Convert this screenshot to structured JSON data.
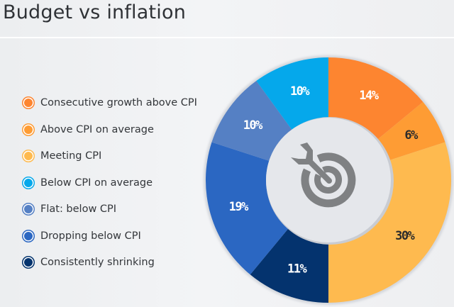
{
  "chart_data": {
    "type": "pie",
    "subtype": "donut",
    "title": "Budget vs inflation",
    "legend_position": "left",
    "center_icon": "target-arrow-icon",
    "categories": [
      "Consecutive growth above CPI",
      "Above CPI on average",
      "Meeting CPI",
      "Below CPI on average",
      "Flat: below CPI",
      "Dropping below CPI",
      "Consistently shrinking"
    ],
    "slices": [
      {
        "category": "Consecutive growth above CPI",
        "value": 14,
        "label": "14%",
        "color": "#fd8530",
        "label_color": "#ffffff"
      },
      {
        "category": "Above CPI on average",
        "value": 6,
        "label": "6%",
        "color": "#fe9c34",
        "label_color": "#2b2b2b"
      },
      {
        "category": "Meeting CPI",
        "value": 30,
        "label": "30%",
        "color": "#feba4f",
        "label_color": "#2b2b2b"
      },
      {
        "category": "Consistently shrinking",
        "value": 11,
        "label": "11%",
        "color": "#04336e",
        "label_color": "#ffffff"
      },
      {
        "category": "Dropping below CPI",
        "value": 19,
        "label": "19%",
        "color": "#2b67c2",
        "label_color": "#ffffff"
      },
      {
        "category": "Flat: below CPI",
        "value": 10,
        "label": "10%",
        "color": "#5580c4",
        "label_color": "#ffffff"
      },
      {
        "category": "Below CPI on average",
        "value": 10,
        "label": "10%",
        "color": "#05a8eb",
        "label_color": "#ffffff"
      }
    ],
    "unit": "%"
  },
  "legend": [
    {
      "label": "Consecutive growth above CPI",
      "color": "#fd8530"
    },
    {
      "label": "Above CPI on average",
      "color": "#fe9c34"
    },
    {
      "label": "Meeting CPI",
      "color": "#feba4f"
    },
    {
      "label": "Below CPI on average",
      "color": "#05a8eb"
    },
    {
      "label": "Flat: below CPI",
      "color": "#5580c4"
    },
    {
      "label": "Dropping below CPI",
      "color": "#2b67c2"
    },
    {
      "label": "Consistently shrinking",
      "color": "#04336e"
    }
  ]
}
